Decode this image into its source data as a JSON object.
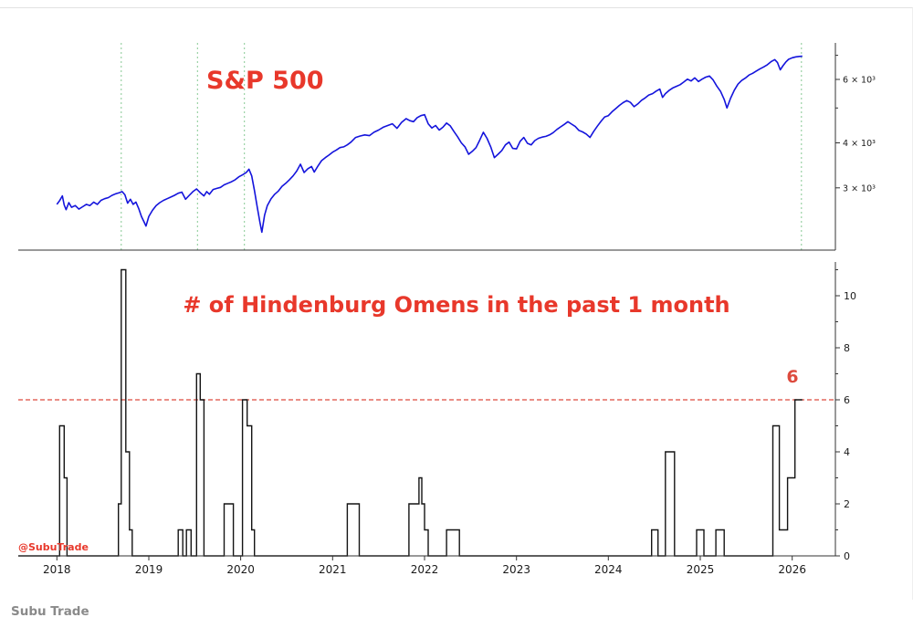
{
  "page": {
    "caption": "Subu Trade",
    "background": "#ffffff",
    "accent_red": "#e8382b",
    "accent_blue": "#1414dc"
  },
  "chart_data": [
    {
      "type": "line",
      "panel": "top",
      "title": "S&P 500",
      "title_color": "#e8382b",
      "line_color": "#1414dc",
      "yscale": "log",
      "xlim": [
        2017.58,
        2026.47
      ],
      "ylim": [
        2016,
        7577
      ],
      "grid": false,
      "legend": "none",
      "axis_side": "right",
      "yticks": [
        {
          "v": 3000,
          "label": "3 × 10³"
        },
        {
          "v": 4000,
          "label": "4 × 10³"
        },
        {
          "v": 5000,
          "label": ""
        },
        {
          "v": 6000,
          "label": "6 × 10³"
        },
        {
          "v": 7000,
          "label": ""
        }
      ],
      "event_lines": {
        "color": "#86c993",
        "x": [
          2018.7,
          2019.53,
          2020.04,
          2026.1
        ]
      },
      "series": {
        "name": "S&P 500",
        "points": [
          [
            2018.0,
            2700
          ],
          [
            2018.03,
            2765
          ],
          [
            2018.06,
            2850
          ],
          [
            2018.08,
            2690
          ],
          [
            2018.1,
            2610
          ],
          [
            2018.13,
            2730
          ],
          [
            2018.16,
            2650
          ],
          [
            2018.2,
            2680
          ],
          [
            2018.24,
            2620
          ],
          [
            2018.28,
            2660
          ],
          [
            2018.32,
            2700
          ],
          [
            2018.36,
            2680
          ],
          [
            2018.4,
            2740
          ],
          [
            2018.44,
            2700
          ],
          [
            2018.48,
            2770
          ],
          [
            2018.52,
            2800
          ],
          [
            2018.56,
            2820
          ],
          [
            2018.6,
            2860
          ],
          [
            2018.64,
            2890
          ],
          [
            2018.68,
            2910
          ],
          [
            2018.71,
            2930
          ],
          [
            2018.74,
            2870
          ],
          [
            2018.77,
            2720
          ],
          [
            2018.8,
            2790
          ],
          [
            2018.83,
            2700
          ],
          [
            2018.86,
            2740
          ],
          [
            2018.89,
            2630
          ],
          [
            2018.92,
            2500
          ],
          [
            2018.95,
            2410
          ],
          [
            2018.97,
            2350
          ],
          [
            2019.0,
            2500
          ],
          [
            2019.04,
            2600
          ],
          [
            2019.08,
            2680
          ],
          [
            2019.12,
            2730
          ],
          [
            2019.16,
            2770
          ],
          [
            2019.2,
            2800
          ],
          [
            2019.24,
            2830
          ],
          [
            2019.28,
            2860
          ],
          [
            2019.32,
            2900
          ],
          [
            2019.36,
            2920
          ],
          [
            2019.4,
            2790
          ],
          [
            2019.44,
            2860
          ],
          [
            2019.48,
            2930
          ],
          [
            2019.52,
            2980
          ],
          [
            2019.56,
            2910
          ],
          [
            2019.6,
            2850
          ],
          [
            2019.63,
            2930
          ],
          [
            2019.66,
            2880
          ],
          [
            2019.7,
            2970
          ],
          [
            2019.74,
            2990
          ],
          [
            2019.78,
            3010
          ],
          [
            2019.82,
            3060
          ],
          [
            2019.86,
            3090
          ],
          [
            2019.9,
            3120
          ],
          [
            2019.94,
            3160
          ],
          [
            2019.98,
            3220
          ],
          [
            2020.02,
            3260
          ],
          [
            2020.06,
            3310
          ],
          [
            2020.09,
            3380
          ],
          [
            2020.12,
            3240
          ],
          [
            2020.15,
            2950
          ],
          [
            2020.18,
            2650
          ],
          [
            2020.21,
            2400
          ],
          [
            2020.23,
            2260
          ],
          [
            2020.26,
            2520
          ],
          [
            2020.29,
            2680
          ],
          [
            2020.33,
            2800
          ],
          [
            2020.37,
            2880
          ],
          [
            2020.41,
            2940
          ],
          [
            2020.45,
            3030
          ],
          [
            2020.49,
            3090
          ],
          [
            2020.53,
            3160
          ],
          [
            2020.57,
            3240
          ],
          [
            2020.61,
            3340
          ],
          [
            2020.65,
            3490
          ],
          [
            2020.69,
            3310
          ],
          [
            2020.73,
            3390
          ],
          [
            2020.77,
            3440
          ],
          [
            2020.8,
            3320
          ],
          [
            2020.84,
            3450
          ],
          [
            2020.88,
            3570
          ],
          [
            2020.92,
            3640
          ],
          [
            2020.96,
            3700
          ],
          [
            2021.0,
            3770
          ],
          [
            2021.04,
            3820
          ],
          [
            2021.08,
            3880
          ],
          [
            2021.12,
            3900
          ],
          [
            2021.16,
            3950
          ],
          [
            2021.2,
            4020
          ],
          [
            2021.25,
            4140
          ],
          [
            2021.3,
            4180
          ],
          [
            2021.35,
            4210
          ],
          [
            2021.4,
            4190
          ],
          [
            2021.45,
            4280
          ],
          [
            2021.5,
            4340
          ],
          [
            2021.55,
            4420
          ],
          [
            2021.6,
            4470
          ],
          [
            2021.65,
            4520
          ],
          [
            2021.7,
            4390
          ],
          [
            2021.75,
            4560
          ],
          [
            2021.8,
            4670
          ],
          [
            2021.84,
            4610
          ],
          [
            2021.88,
            4580
          ],
          [
            2021.92,
            4700
          ],
          [
            2021.96,
            4760
          ],
          [
            2022.0,
            4790
          ],
          [
            2022.04,
            4520
          ],
          [
            2022.08,
            4400
          ],
          [
            2022.12,
            4470
          ],
          [
            2022.16,
            4340
          ],
          [
            2022.2,
            4420
          ],
          [
            2022.24,
            4540
          ],
          [
            2022.28,
            4460
          ],
          [
            2022.32,
            4300
          ],
          [
            2022.36,
            4160
          ],
          [
            2022.4,
            4000
          ],
          [
            2022.44,
            3900
          ],
          [
            2022.48,
            3720
          ],
          [
            2022.52,
            3790
          ],
          [
            2022.56,
            3880
          ],
          [
            2022.6,
            4070
          ],
          [
            2022.64,
            4280
          ],
          [
            2022.68,
            4120
          ],
          [
            2022.72,
            3900
          ],
          [
            2022.76,
            3640
          ],
          [
            2022.8,
            3720
          ],
          [
            2022.84,
            3810
          ],
          [
            2022.88,
            3950
          ],
          [
            2022.92,
            4020
          ],
          [
            2022.96,
            3860
          ],
          [
            2023.0,
            3850
          ],
          [
            2023.04,
            4040
          ],
          [
            2023.08,
            4140
          ],
          [
            2023.12,
            3990
          ],
          [
            2023.16,
            3950
          ],
          [
            2023.2,
            4060
          ],
          [
            2023.24,
            4120
          ],
          [
            2023.28,
            4150
          ],
          [
            2023.32,
            4170
          ],
          [
            2023.36,
            4210
          ],
          [
            2023.4,
            4270
          ],
          [
            2023.44,
            4360
          ],
          [
            2023.48,
            4430
          ],
          [
            2023.52,
            4500
          ],
          [
            2023.56,
            4580
          ],
          [
            2023.6,
            4510
          ],
          [
            2023.64,
            4440
          ],
          [
            2023.68,
            4330
          ],
          [
            2023.72,
            4290
          ],
          [
            2023.76,
            4230
          ],
          [
            2023.8,
            4140
          ],
          [
            2023.84,
            4300
          ],
          [
            2023.88,
            4450
          ],
          [
            2023.92,
            4590
          ],
          [
            2023.96,
            4720
          ],
          [
            2024.0,
            4760
          ],
          [
            2024.04,
            4880
          ],
          [
            2024.08,
            4980
          ],
          [
            2024.12,
            5080
          ],
          [
            2024.16,
            5170
          ],
          [
            2024.2,
            5240
          ],
          [
            2024.24,
            5180
          ],
          [
            2024.28,
            5040
          ],
          [
            2024.32,
            5130
          ],
          [
            2024.36,
            5250
          ],
          [
            2024.4,
            5330
          ],
          [
            2024.44,
            5430
          ],
          [
            2024.48,
            5480
          ],
          [
            2024.52,
            5570
          ],
          [
            2024.56,
            5640
          ],
          [
            2024.59,
            5350
          ],
          [
            2024.62,
            5480
          ],
          [
            2024.66,
            5590
          ],
          [
            2024.7,
            5680
          ],
          [
            2024.74,
            5740
          ],
          [
            2024.78,
            5800
          ],
          [
            2024.82,
            5900
          ],
          [
            2024.86,
            6010
          ],
          [
            2024.9,
            5940
          ],
          [
            2024.94,
            6060
          ],
          [
            2024.98,
            5920
          ],
          [
            2025.02,
            6010
          ],
          [
            2025.06,
            6090
          ],
          [
            2025.1,
            6130
          ],
          [
            2025.14,
            5980
          ],
          [
            2025.18,
            5750
          ],
          [
            2025.22,
            5560
          ],
          [
            2025.26,
            5280
          ],
          [
            2025.29,
            5000
          ],
          [
            2025.33,
            5320
          ],
          [
            2025.37,
            5600
          ],
          [
            2025.41,
            5820
          ],
          [
            2025.45,
            5960
          ],
          [
            2025.49,
            6050
          ],
          [
            2025.53,
            6170
          ],
          [
            2025.57,
            6240
          ],
          [
            2025.61,
            6330
          ],
          [
            2025.65,
            6420
          ],
          [
            2025.69,
            6500
          ],
          [
            2025.73,
            6590
          ],
          [
            2025.77,
            6720
          ],
          [
            2025.81,
            6810
          ],
          [
            2025.84,
            6680
          ],
          [
            2025.87,
            6380
          ],
          [
            2025.9,
            6550
          ],
          [
            2025.93,
            6700
          ],
          [
            2025.96,
            6820
          ],
          [
            2026.0,
            6890
          ],
          [
            2026.04,
            6930
          ],
          [
            2026.08,
            6950
          ],
          [
            2026.11,
            6960
          ]
        ]
      }
    },
    {
      "type": "step",
      "panel": "bottom",
      "title": "# of Hindenburg Omens in the past 1 month",
      "title_color": "#e8382b",
      "line_color": "#141414",
      "xlim": [
        2017.58,
        2026.47
      ],
      "ylim": [
        0,
        11.3
      ],
      "grid": false,
      "legend": "none",
      "axis_side": "right",
      "ytick_major": [
        0,
        2,
        4,
        6,
        8,
        10
      ],
      "ytick_minor": [
        1,
        3,
        5,
        7,
        9,
        11
      ],
      "xtick_labels": [
        "2018",
        "2019",
        "2020",
        "2021",
        "2022",
        "2023",
        "2024",
        "2025",
        "2026"
      ],
      "threshold": {
        "value": 6,
        "label": "6",
        "color": "#dd4b3e"
      },
      "watermark": "@SubuTrade",
      "watermark_color": "#e8382b",
      "steps": [
        [
          2017.58,
          0
        ],
        [
          2018.03,
          5
        ],
        [
          2018.08,
          3
        ],
        [
          2018.11,
          0
        ],
        [
          2018.67,
          2
        ],
        [
          2018.7,
          11
        ],
        [
          2018.75,
          4
        ],
        [
          2018.79,
          1
        ],
        [
          2018.82,
          0
        ],
        [
          2019.32,
          1
        ],
        [
          2019.37,
          0
        ],
        [
          2019.41,
          1
        ],
        [
          2019.46,
          0
        ],
        [
          2019.52,
          7
        ],
        [
          2019.56,
          6
        ],
        [
          2019.6,
          0
        ],
        [
          2019.82,
          2
        ],
        [
          2019.92,
          0
        ],
        [
          2020.02,
          6
        ],
        [
          2020.07,
          5
        ],
        [
          2020.12,
          1
        ],
        [
          2020.15,
          0
        ],
        [
          2021.16,
          2
        ],
        [
          2021.29,
          0
        ],
        [
          2021.83,
          2
        ],
        [
          2021.94,
          3
        ],
        [
          2021.97,
          2
        ],
        [
          2022.0,
          1
        ],
        [
          2022.04,
          0
        ],
        [
          2022.24,
          1
        ],
        [
          2022.38,
          0
        ],
        [
          2024.47,
          1
        ],
        [
          2024.54,
          0
        ],
        [
          2024.62,
          4
        ],
        [
          2024.72,
          0
        ],
        [
          2024.96,
          1
        ],
        [
          2025.04,
          0
        ],
        [
          2025.17,
          1
        ],
        [
          2025.26,
          0
        ],
        [
          2025.79,
          5
        ],
        [
          2025.86,
          1
        ],
        [
          2025.95,
          3
        ],
        [
          2026.03,
          6
        ],
        [
          2026.11,
          6
        ]
      ]
    }
  ]
}
